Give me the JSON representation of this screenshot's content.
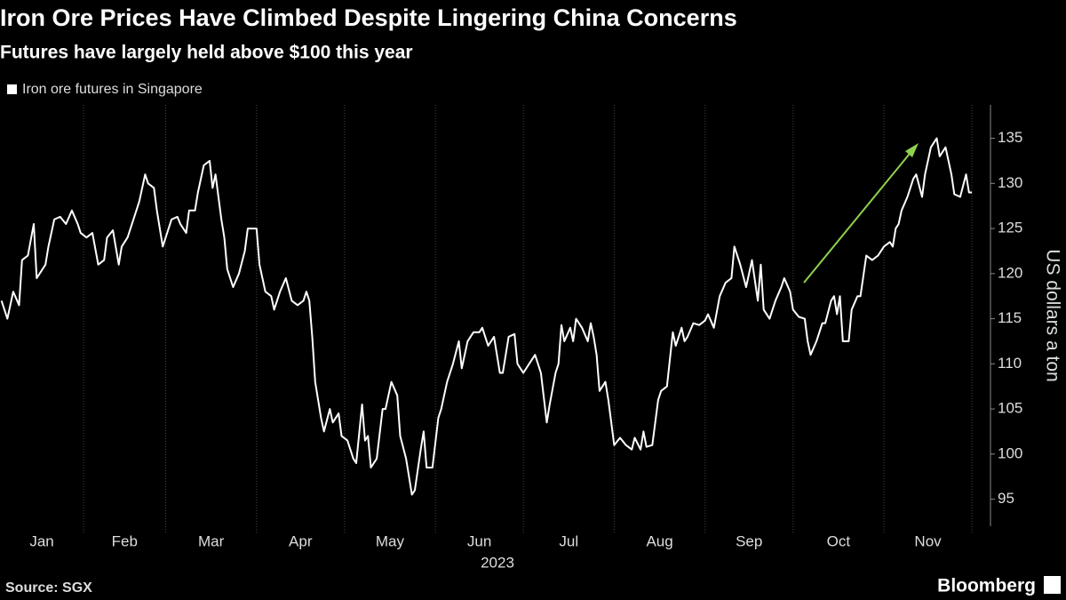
{
  "chart_data": {
    "type": "line",
    "title": "Iron Ore Prices Have Climbed Despite Lingering China Concerns",
    "subtitle": "Futures have largely held above $100 this year",
    "ylabel": "US dollars a ton",
    "xlabel": "2023",
    "source": "Source: SGX",
    "brand": "Bloomberg",
    "categories": [
      "Jan",
      "Feb",
      "Mar",
      "Apr",
      "May",
      "Jun",
      "Jul",
      "Aug",
      "Sep",
      "Oct",
      "Nov"
    ],
    "xlim": [
      3.5,
      336.8
    ],
    "xticks": [
      1,
      32,
      60,
      91,
      121,
      152,
      182,
      213,
      244,
      274,
      305,
      335
    ],
    "ylim": [
      92,
      138.7
    ],
    "yticks": [
      95,
      100,
      105,
      110,
      115,
      120,
      125,
      130,
      135
    ],
    "x": [
      4,
      6,
      8,
      10,
      11,
      13,
      15,
      16,
      19,
      20,
      22,
      24,
      26,
      28,
      30,
      31,
      33,
      35,
      37,
      39,
      40,
      42,
      44,
      45,
      47,
      49,
      51,
      53,
      54,
      56,
      57,
      59,
      60,
      62,
      64,
      65,
      67,
      68,
      70,
      71,
      73,
      75,
      76,
      77,
      79,
      80,
      81,
      83,
      85,
      87,
      88,
      91,
      92,
      94,
      96,
      97,
      99,
      101,
      103,
      105,
      107,
      108,
      109,
      110,
      111,
      113,
      114,
      116,
      117,
      119,
      120,
      122,
      124,
      125,
      127,
      128,
      129,
      130,
      132,
      134,
      135,
      137,
      139,
      140,
      142,
      144,
      145,
      147,
      148,
      149,
      151,
      153,
      154,
      156,
      158,
      160,
      161,
      163,
      165,
      167,
      168,
      170,
      172,
      174,
      175,
      177,
      179,
      180,
      182,
      184,
      186,
      188,
      190,
      191,
      193,
      194,
      195,
      196,
      198,
      199,
      200,
      202,
      204,
      205,
      206,
      207,
      208,
      210,
      211,
      213,
      215,
      217,
      219,
      220,
      222,
      223,
      224,
      226,
      228,
      229,
      231,
      233,
      234,
      236,
      237,
      238,
      240,
      242,
      244,
      245,
      247,
      249,
      251,
      253,
      254,
      256,
      258,
      260,
      262,
      263,
      264,
      266,
      268,
      270,
      271,
      273,
      274,
      276,
      278,
      279,
      280,
      282,
      284,
      285,
      287,
      288,
      289,
      290,
      291,
      293,
      294,
      296,
      297,
      299,
      301,
      303,
      305,
      307,
      308,
      309,
      310,
      311,
      313,
      315,
      316,
      318,
      319,
      321,
      323,
      324,
      326,
      328,
      329,
      331,
      333,
      334,
      335
    ],
    "series": [
      {
        "name": "Iron ore futures in Singapore",
        "color": "#ffffff",
        "values": [
          117,
          115,
          118,
          116.5,
          121.5,
          122,
          125.5,
          119.5,
          121,
          123,
          126,
          126.3,
          125.5,
          127,
          125.5,
          124.5,
          124,
          124.5,
          121,
          121.5,
          124,
          124.8,
          121,
          123,
          124,
          126,
          128,
          131,
          130,
          129.5,
          127,
          123,
          124,
          126,
          126.3,
          125.5,
          124.5,
          127,
          127,
          129,
          132,
          132.5,
          129.5,
          131,
          126,
          124,
          120.5,
          118.5,
          120,
          122.5,
          125,
          125,
          121,
          118,
          117.5,
          116,
          118,
          119.5,
          117,
          116.5,
          117,
          118,
          117,
          113,
          108,
          104,
          102.5,
          105,
          103.5,
          104.5,
          102,
          101.5,
          99.5,
          99,
          105.5,
          101.5,
          102,
          98.5,
          99.5,
          105,
          105,
          108,
          106.5,
          102,
          99.5,
          95.5,
          96,
          100.5,
          102.5,
          98.5,
          98.5,
          104,
          105,
          108,
          110,
          112.5,
          109.5,
          112.5,
          113.5,
          113.5,
          114,
          112,
          113,
          109,
          109,
          113,
          113.3,
          110,
          109,
          110,
          111,
          109,
          103.5,
          105.5,
          109,
          110,
          114.3,
          112.5,
          114,
          112.5,
          115,
          114,
          112.5,
          114.5,
          113,
          111,
          107,
          108,
          106,
          101,
          101.8,
          101,
          100.5,
          101.8,
          100.5,
          102.5,
          100.8,
          101,
          106,
          107,
          107.5,
          113.5,
          112,
          114,
          112.5,
          113,
          114.5,
          114.3,
          114.8,
          115.5,
          114,
          117.5,
          119,
          119.5,
          123,
          121,
          118.5,
          121.5,
          117,
          121,
          116,
          115,
          117,
          118.5,
          119.5,
          118,
          116,
          115.2,
          115,
          112.5,
          111,
          112.5,
          114.5,
          114.5,
          117,
          117.5,
          115.5,
          117.5,
          112.5,
          112.5,
          116,
          117.5,
          117.5,
          122,
          121.5,
          122,
          123,
          123.5,
          123,
          125,
          125.5,
          127,
          128.5,
          130.5,
          131,
          128.5,
          131,
          134,
          135,
          133,
          134,
          131,
          128.8,
          128.5,
          131,
          129,
          129
        ]
      }
    ]
  }
}
